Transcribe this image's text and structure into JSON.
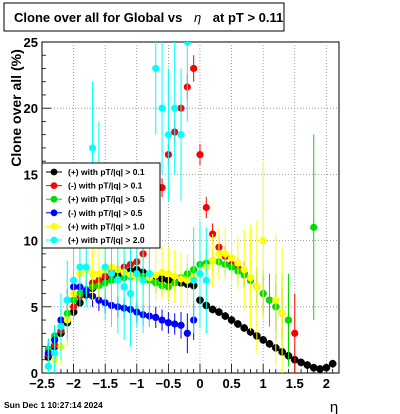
{
  "title": {
    "prefix": "Clone  over all for Global vs",
    "symbol": "η",
    "suffix": "at pT > 0.11"
  },
  "footer_date": "Sun Dec  1 10:27:14 2024",
  "chart_data": {
    "type": "scatter",
    "xlabel": "η",
    "ylabel": "Clone  over all (%)",
    "xlim": [
      -2.5,
      2.2
    ],
    "ylim": [
      0,
      25
    ],
    "grid": true,
    "legend_position": "middle-left",
    "x_ticks": [
      {
        "value": -2.5,
        "label": "−2.5"
      },
      {
        "value": -2,
        "label": "−2"
      },
      {
        "value": -1.5,
        "label": "−1.5"
      },
      {
        "value": -1,
        "label": "−1"
      },
      {
        "value": -0.5,
        "label": "−0.5"
      },
      {
        "value": 0,
        "label": "0"
      },
      {
        "value": 0.5,
        "label": "0.5"
      },
      {
        "value": 1,
        "label": "1"
      },
      {
        "value": 1.5,
        "label": "1.5"
      },
      {
        "value": 2,
        "label": "2"
      }
    ],
    "y_ticks": [
      {
        "value": 0,
        "label": "0"
      },
      {
        "value": 5,
        "label": "5"
      },
      {
        "value": 10,
        "label": "10"
      },
      {
        "value": 15,
        "label": "15"
      },
      {
        "value": 20,
        "label": "20"
      },
      {
        "value": 25,
        "label": "25"
      }
    ],
    "series": [
      {
        "name": "(+) with pT/|q| > 0.1",
        "color": "#000000",
        "points": [
          [
            -2.4,
            1.2,
            0.3
          ],
          [
            -2.3,
            2.0,
            0.3
          ],
          [
            -2.2,
            3.0,
            0.3
          ],
          [
            -2.1,
            3.8,
            0.3
          ],
          [
            -2.0,
            4.6,
            0.3
          ],
          [
            -1.9,
            5.3,
            0.3
          ],
          [
            -1.8,
            5.9,
            0.3
          ],
          [
            -1.7,
            6.4,
            0.3
          ],
          [
            -1.6,
            6.8,
            0.3
          ],
          [
            -1.5,
            7.0,
            0.3
          ],
          [
            -1.4,
            7.2,
            0.3
          ],
          [
            -1.3,
            7.4,
            0.3
          ],
          [
            -1.2,
            7.6,
            0.3
          ],
          [
            -1.1,
            7.7,
            0.3
          ],
          [
            -1.0,
            7.8,
            0.3
          ],
          [
            -0.9,
            7.6,
            0.3
          ],
          [
            -0.8,
            7.4,
            0.3
          ],
          [
            -0.7,
            7.3,
            0.3
          ],
          [
            -0.6,
            7.1,
            0.3
          ],
          [
            -0.5,
            7.0,
            0.3
          ],
          [
            -0.4,
            6.9,
            0.3
          ],
          [
            -0.3,
            6.8,
            0.3
          ],
          [
            -0.2,
            6.7,
            0.3
          ],
          [
            -0.1,
            6.6,
            0.3
          ],
          [
            0.0,
            5.5,
            0.3
          ],
          [
            0.1,
            5.1,
            0.3
          ],
          [
            0.2,
            4.8,
            0.3
          ],
          [
            0.3,
            4.6,
            0.3
          ],
          [
            0.4,
            4.3,
            0.3
          ],
          [
            0.5,
            4.0,
            0.3
          ],
          [
            0.6,
            3.7,
            0.3
          ],
          [
            0.7,
            3.4,
            0.3
          ],
          [
            0.8,
            3.1,
            0.3
          ],
          [
            0.9,
            2.8,
            0.3
          ],
          [
            1.0,
            2.5,
            0.3
          ],
          [
            1.1,
            2.2,
            0.3
          ],
          [
            1.2,
            1.9,
            0.3
          ],
          [
            1.3,
            1.6,
            0.3
          ],
          [
            1.4,
            1.3,
            0.3
          ],
          [
            1.5,
            1.0,
            0.3
          ],
          [
            1.6,
            0.8,
            0.3
          ],
          [
            1.7,
            0.6,
            0.3
          ],
          [
            1.8,
            0.4,
            0.3
          ],
          [
            1.9,
            0.3,
            0.3
          ],
          [
            2.0,
            0.4,
            0.3
          ],
          [
            2.1,
            0.7,
            0.3
          ]
        ]
      },
      {
        "name": "(-) with pT/|q| > 0.1",
        "color": "#ff0000",
        "points": [
          [
            -2.4,
            1.4,
            0.4
          ],
          [
            -2.3,
            2.1,
            0.4
          ],
          [
            -2.2,
            3.2,
            0.4
          ],
          [
            -2.1,
            4.0,
            0.4
          ],
          [
            -2.0,
            5.0,
            0.5
          ],
          [
            -1.9,
            5.8,
            0.5
          ],
          [
            -1.8,
            6.3,
            0.5
          ],
          [
            -1.7,
            6.8,
            0.5
          ],
          [
            -1.6,
            7.0,
            0.5
          ],
          [
            -1.5,
            7.3,
            0.5
          ],
          [
            -1.4,
            7.6,
            0.5
          ],
          [
            -1.3,
            7.8,
            0.5
          ],
          [
            -1.2,
            8.0,
            0.5
          ],
          [
            -1.1,
            8.2,
            0.5
          ],
          [
            -1.0,
            8.4,
            0.5
          ],
          [
            -0.9,
            9.0,
            0.6
          ],
          [
            -0.8,
            10.5,
            0.6
          ],
          [
            -0.7,
            12.0,
            0.7
          ],
          [
            -0.6,
            14.0,
            0.7
          ],
          [
            -0.5,
            16.5,
            0.8
          ],
          [
            -0.4,
            18.2,
            0.9
          ],
          [
            -0.3,
            20.0,
            0.9
          ],
          [
            -0.2,
            21.6,
            1.0
          ],
          [
            -0.1,
            23.0,
            1.0
          ],
          [
            0.0,
            16.5,
            0.8
          ],
          [
            0.1,
            12.5,
            0.8
          ],
          [
            0.2,
            10.5,
            0.8
          ],
          [
            0.3,
            9.5,
            0.8
          ],
          [
            0.4,
            8.8,
            0.8
          ],
          [
            0.5,
            8.2,
            0.8
          ],
          [
            0.6,
            7.9,
            0.8
          ],
          [
            0.7,
            7.5,
            0.9
          ],
          [
            0.8,
            7.0,
            1.0
          ],
          [
            0.9,
            6.5,
            1.2
          ],
          [
            1.0,
            6.0,
            1.4
          ],
          [
            1.1,
            5.5,
            1.6
          ],
          [
            1.2,
            5.0,
            1.8
          ],
          [
            1.3,
            4.5,
            2.0
          ],
          [
            1.4,
            4.0,
            2.5
          ],
          [
            1.5,
            3.0,
            3.0
          ]
        ]
      },
      {
        "name": "(+) with pT/|q| > 0.5",
        "color": "#00dd00",
        "points": [
          [
            -2.4,
            1.8,
            0.8
          ],
          [
            -2.3,
            2.8,
            0.8
          ],
          [
            -2.2,
            3.5,
            0.8
          ],
          [
            -2.1,
            4.5,
            0.8
          ],
          [
            -2.0,
            5.5,
            0.8
          ],
          [
            -1.9,
            6.0,
            0.8
          ],
          [
            -1.8,
            6.3,
            0.8
          ],
          [
            -1.7,
            6.5,
            0.8
          ],
          [
            -1.6,
            6.6,
            0.8
          ],
          [
            -1.5,
            6.8,
            0.8
          ],
          [
            -1.4,
            7.0,
            0.8
          ],
          [
            -1.3,
            7.1,
            0.8
          ],
          [
            -1.2,
            7.2,
            0.8
          ],
          [
            -1.1,
            7.3,
            0.8
          ],
          [
            -1.0,
            7.4,
            0.8
          ],
          [
            -0.9,
            7.3,
            0.8
          ],
          [
            -0.8,
            7.0,
            0.8
          ],
          [
            -0.7,
            6.8,
            0.8
          ],
          [
            -0.6,
            6.6,
            0.8
          ],
          [
            -0.5,
            6.5,
            0.8
          ],
          [
            -0.4,
            6.8,
            0.8
          ],
          [
            -0.3,
            7.2,
            0.8
          ],
          [
            -0.2,
            7.5,
            0.8
          ],
          [
            -0.1,
            7.8,
            0.8
          ],
          [
            0.0,
            8.2,
            0.8
          ],
          [
            0.1,
            8.3,
            0.8
          ],
          [
            0.2,
            8.5,
            0.8
          ],
          [
            0.3,
            8.4,
            0.8
          ],
          [
            0.4,
            8.2,
            0.8
          ],
          [
            0.5,
            8.0,
            0.8
          ],
          [
            0.6,
            7.7,
            0.9
          ],
          [
            0.7,
            7.4,
            1.0
          ],
          [
            0.8,
            7.0,
            1.2
          ],
          [
            0.9,
            6.5,
            1.5
          ],
          [
            1.0,
            6.0,
            1.8
          ],
          [
            1.1,
            5.5,
            2.0
          ],
          [
            1.2,
            5.0,
            2.5
          ],
          [
            1.3,
            4.5,
            3.0
          ],
          [
            1.4,
            4.0,
            3.5
          ],
          [
            1.8,
            11.0,
            7.0
          ]
        ]
      },
      {
        "name": "(-) with pT/|q| > 0.5",
        "color": "#0000ff",
        "points": [
          [
            -2.4,
            1.5,
            0.8
          ],
          [
            -2.3,
            2.5,
            0.8
          ],
          [
            -2.2,
            4.0,
            0.8
          ],
          [
            -2.1,
            5.5,
            0.8
          ],
          [
            -2.0,
            6.5,
            0.8
          ],
          [
            -1.9,
            6.5,
            0.8
          ],
          [
            -1.8,
            6.2,
            0.8
          ],
          [
            -1.7,
            5.8,
            0.8
          ],
          [
            -1.6,
            5.5,
            0.8
          ],
          [
            -1.5,
            5.3,
            0.8
          ],
          [
            -1.4,
            5.1,
            0.8
          ],
          [
            -1.3,
            5.0,
            0.8
          ],
          [
            -1.2,
            4.9,
            0.8
          ],
          [
            -1.1,
            4.8,
            0.8
          ],
          [
            -1.0,
            4.6,
            0.8
          ],
          [
            -0.9,
            4.4,
            0.8
          ],
          [
            -0.8,
            4.3,
            0.8
          ],
          [
            -0.7,
            4.2,
            0.8
          ],
          [
            -0.6,
            4.0,
            0.8
          ],
          [
            -0.5,
            3.8,
            0.8
          ],
          [
            -0.4,
            3.7,
            0.8
          ],
          [
            -0.3,
            3.6,
            1.0
          ],
          [
            -0.2,
            3.0,
            1.5
          ],
          [
            -0.1,
            4.0,
            1.5
          ]
        ]
      },
      {
        "name": "(+) with pT/|q| > 1.0",
        "color": "#ffff00",
        "points": [
          [
            -2.4,
            0.5,
            1.5
          ],
          [
            -2.3,
            1.0,
            1.5
          ],
          [
            -2.2,
            2.0,
            1.5
          ],
          [
            -2.1,
            4.0,
            2.0
          ],
          [
            -2.0,
            6.0,
            2.0
          ],
          [
            -1.9,
            7.5,
            2.0
          ],
          [
            -1.8,
            7.8,
            2.0
          ],
          [
            -1.7,
            7.5,
            2.0
          ],
          [
            -1.6,
            7.5,
            2.0
          ],
          [
            -1.5,
            7.8,
            2.0
          ],
          [
            -1.4,
            8.0,
            2.0
          ],
          [
            -1.3,
            7.8,
            2.0
          ],
          [
            -1.2,
            7.6,
            2.0
          ],
          [
            -1.1,
            7.4,
            2.0
          ],
          [
            -1.0,
            7.2,
            2.0
          ],
          [
            -0.9,
            7.0,
            2.0
          ],
          [
            -0.8,
            7.2,
            2.0
          ],
          [
            -0.7,
            7.4,
            2.0
          ],
          [
            -0.6,
            7.6,
            2.0
          ],
          [
            -0.5,
            7.5,
            2.0
          ],
          [
            -0.4,
            7.3,
            2.0
          ],
          [
            -0.3,
            7.1,
            2.0
          ],
          [
            -0.2,
            7.0,
            2.0
          ],
          [
            -0.1,
            7.2,
            2.0
          ],
          [
            0.0,
            7.5,
            2.0
          ],
          [
            0.1,
            8.0,
            2.0
          ],
          [
            0.2,
            8.5,
            2.0
          ],
          [
            0.3,
            9.0,
            2.0
          ],
          [
            0.4,
            9.0,
            2.0
          ],
          [
            0.5,
            8.7,
            2.0
          ],
          [
            0.6,
            8.3,
            2.0
          ],
          [
            0.7,
            7.8,
            3.0
          ],
          [
            0.8,
            7.2,
            4.0
          ],
          [
            0.9,
            6.5,
            5.0
          ],
          [
            1.0,
            10.0,
            6.0
          ],
          [
            1.2,
            5.5,
            5.0
          ],
          [
            1.3,
            4.5,
            5.0
          ]
        ]
      },
      {
        "name": "(+) with pT/|q| > 2.0",
        "color": "#00ffff",
        "points": [
          [
            -2.4,
            0.5,
            2.0
          ],
          [
            -2.3,
            1.5,
            2.0
          ],
          [
            -2.2,
            3.5,
            2.5
          ],
          [
            -2.1,
            5.5,
            3.0
          ],
          [
            -2.0,
            7.0,
            3.0
          ],
          [
            -1.9,
            8.0,
            3.0
          ],
          [
            -1.8,
            8.0,
            3.0
          ],
          [
            -1.7,
            17.0,
            5.0
          ],
          [
            -1.6,
            15.0,
            4.0
          ],
          [
            -1.5,
            8.0,
            4.0
          ],
          [
            -1.4,
            7.5,
            4.0
          ],
          [
            -1.3,
            7.0,
            4.0
          ],
          [
            -1.2,
            6.5,
            4.0
          ],
          [
            -1.1,
            6.0,
            4.0
          ],
          [
            -1.0,
            7.5,
            4.0
          ],
          [
            -0.9,
            7.0,
            4.0
          ],
          [
            -0.8,
            7.5,
            4.0
          ],
          [
            -0.7,
            23.0,
            5.0
          ],
          [
            -0.6,
            20.0,
            5.0
          ],
          [
            -0.5,
            18.0,
            5.0
          ],
          [
            -0.4,
            20.0,
            5.0
          ],
          [
            -0.3,
            18.0,
            5.0
          ],
          [
            -0.2,
            25.0,
            6.0
          ],
          [
            -0.1,
            7.0,
            4.0
          ],
          [
            0.0,
            7.5,
            4.0
          ],
          [
            0.1,
            7.0,
            4.0
          ]
        ]
      }
    ]
  }
}
